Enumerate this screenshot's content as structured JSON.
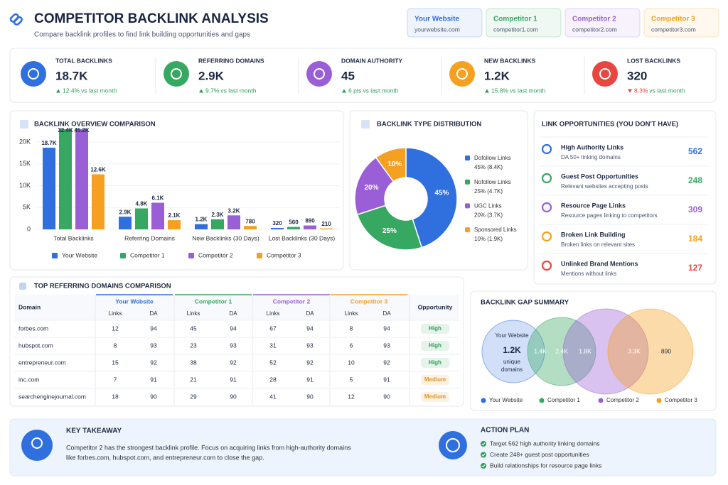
{
  "header": {
    "title": "COMPETITOR BACKLINK ANALYSIS",
    "subtitle": "Compare backlink profiles to find link building opportunities and gaps"
  },
  "sites": [
    {
      "name": "Your Website",
      "url": "yourwebsite.com",
      "color": "#2f6fde"
    },
    {
      "name": "Competitor 1",
      "url": "competitor1.com",
      "color": "#36a862"
    },
    {
      "name": "Competitor 2",
      "url": "competitor2.com",
      "color": "#9a5fd6"
    },
    {
      "name": "Competitor 3",
      "url": "competitor3.com",
      "color": "#f5a020"
    }
  ],
  "kpis": [
    {
      "label": "TOTAL BACKLINKS",
      "value": "18.7K",
      "change": "12.4%",
      "note": "vs last month",
      "trend": "up",
      "color": "#2f6fde"
    },
    {
      "label": "REFERRING DOMAINS",
      "value": "2.9K",
      "change": "9.7%",
      "note": "vs last month",
      "trend": "up",
      "color": "#36a862"
    },
    {
      "label": "DOMAIN AUTHORITY",
      "value": "45",
      "change": "6 pts",
      "note": "vs last month",
      "trend": "up",
      "color": "#9a5fd6"
    },
    {
      "label": "NEW BACKLINKS",
      "value": "1.2K",
      "change": "15.8%",
      "note": "vs last month",
      "trend": "up",
      "color": "#f5a020"
    },
    {
      "label": "LOST BACKLINKS",
      "value": "320",
      "change": "8.3%",
      "note": "vs last month",
      "trend": "down",
      "color": "#e8473f"
    }
  ],
  "chart_data": [
    {
      "type": "bar",
      "title": "BACKLINK OVERVIEW COMPARISON",
      "categories": [
        "Total Backlinks",
        "Referring Domains",
        "New Backlinks (30 Days)",
        "Lost Backlinks (30 Days)"
      ],
      "series": [
        {
          "name": "Your Website",
          "color": "#2f6fde",
          "values": [
            18700,
            2900,
            1200,
            320
          ],
          "value_labels": [
            "18.7K",
            "2.9K",
            "1.2K",
            "320"
          ]
        },
        {
          "name": "Competitor 1",
          "color": "#36a862",
          "values": [
            32400,
            4800,
            2300,
            560
          ],
          "value_labels": [
            "32.4K",
            "4.8K",
            "2.3K",
            "560"
          ]
        },
        {
          "name": "Competitor 2",
          "color": "#9a5fd6",
          "values": [
            45200,
            6100,
            3200,
            890
          ],
          "value_labels": [
            "45.2K",
            "6.1K",
            "3.2K",
            "890"
          ]
        },
        {
          "name": "Competitor 3",
          "color": "#f5a020",
          "values": [
            12600,
            2100,
            780,
            210
          ],
          "value_labels": [
            "12.6K",
            "2.1K",
            "780",
            "210"
          ]
        }
      ],
      "ylim": [
        0,
        20000
      ],
      "yticks": [
        0,
        {
          "value": 5000,
          "label": "5K"
        },
        {
          "value": 10000,
          "label": "10K"
        },
        {
          "value": 15000,
          "label": "15K"
        },
        {
          "value": 20000,
          "label": "20K"
        }
      ],
      "grid": true,
      "legend": "bottom"
    },
    {
      "type": "pie",
      "title": "BACKLINK TYPE DISTRIBUTION",
      "categories": [
        "Dofollow Links",
        "Nofollow Links",
        "UGC Links",
        "Sponsored Links"
      ],
      "values": [
        45,
        25,
        20,
        10
      ],
      "value_labels": [
        "45%",
        "25%",
        "20%",
        "10%"
      ],
      "details": [
        "45% (8.4K)",
        "25% (4.7K)",
        "20% (3.7K)",
        "10% (1.9K)"
      ],
      "colors": [
        "#2f6fde",
        "#36a862",
        "#9a5fd6",
        "#f5a020"
      ],
      "donut": true,
      "legend": "right"
    }
  ],
  "opportunities": {
    "title": "LINK OPPORTUNITIES (YOU DON'T HAVE)",
    "items": [
      {
        "title": "High Authority Links",
        "desc": "DA 50+ linking domains",
        "value": 562,
        "color": "#2f6fde"
      },
      {
        "title": "Guest Post Opportunities",
        "desc": "Relevant websites accepting posts",
        "value": 248,
        "color": "#36a862"
      },
      {
        "title": "Resource Page Links",
        "desc": "Resource pages linking to competitors",
        "value": 309,
        "color": "#9a5fd6"
      },
      {
        "title": "Broken Link Building",
        "desc": "Broken links on relevant sites",
        "value": 184,
        "color": "#f5a020"
      },
      {
        "title": "Unlinked Brand Mentions",
        "desc": "Mentions without links",
        "value": 127,
        "color": "#e8473f"
      }
    ]
  },
  "table": {
    "title": "TOP REFERRING DOMAINS COMPARISON",
    "domain_header": "Domain",
    "groups": [
      "Your Website",
      "Competitor 1",
      "Competitor 2",
      "Competitor 3"
    ],
    "sub": [
      "Links",
      "DA"
    ],
    "opportunity_header": "Opportunity",
    "badge_colors": {
      "High": "#2e9e5a",
      "Medium": "#e39520"
    },
    "rows": [
      [
        "forbes.com",
        12,
        94,
        45,
        94,
        67,
        94,
        8,
        94,
        "High"
      ],
      [
        "hubspot.com",
        8,
        93,
        23,
        93,
        31,
        93,
        6,
        93,
        "High"
      ],
      [
        "entrepreneur.com",
        15,
        92,
        38,
        92,
        52,
        92,
        10,
        92,
        "High"
      ],
      [
        "inc.com",
        7,
        91,
        21,
        91,
        28,
        91,
        5,
        91,
        "Medium"
      ],
      [
        "searchenginejournal.com",
        18,
        90,
        29,
        90,
        41,
        90,
        12,
        90,
        "Medium"
      ]
    ]
  },
  "venn": {
    "title": "BACKLINK GAP SUMMARY",
    "center_label": "Your Website",
    "unique": "1.2K",
    "unique_lines": [
      "unique",
      "domains"
    ],
    "overlaps": [
      "1.4K",
      "2.4K",
      "1.8K",
      "3.3K",
      "890"
    ]
  },
  "takeaway": {
    "title": "KEY TAKEAWAY",
    "lines": [
      "Competitor 2 has the strongest backlink profile. Focus on acquiring links from high-authority domains",
      "like forbes.com, hubspot.com, and entrepreneur.com to close the gap."
    ]
  },
  "action_plan": {
    "title": "ACTION PLAN",
    "items": [
      "Target 562 high authority linking domains",
      "Create 248+ guest post opportunities",
      "Build relationships for resource page links"
    ]
  }
}
